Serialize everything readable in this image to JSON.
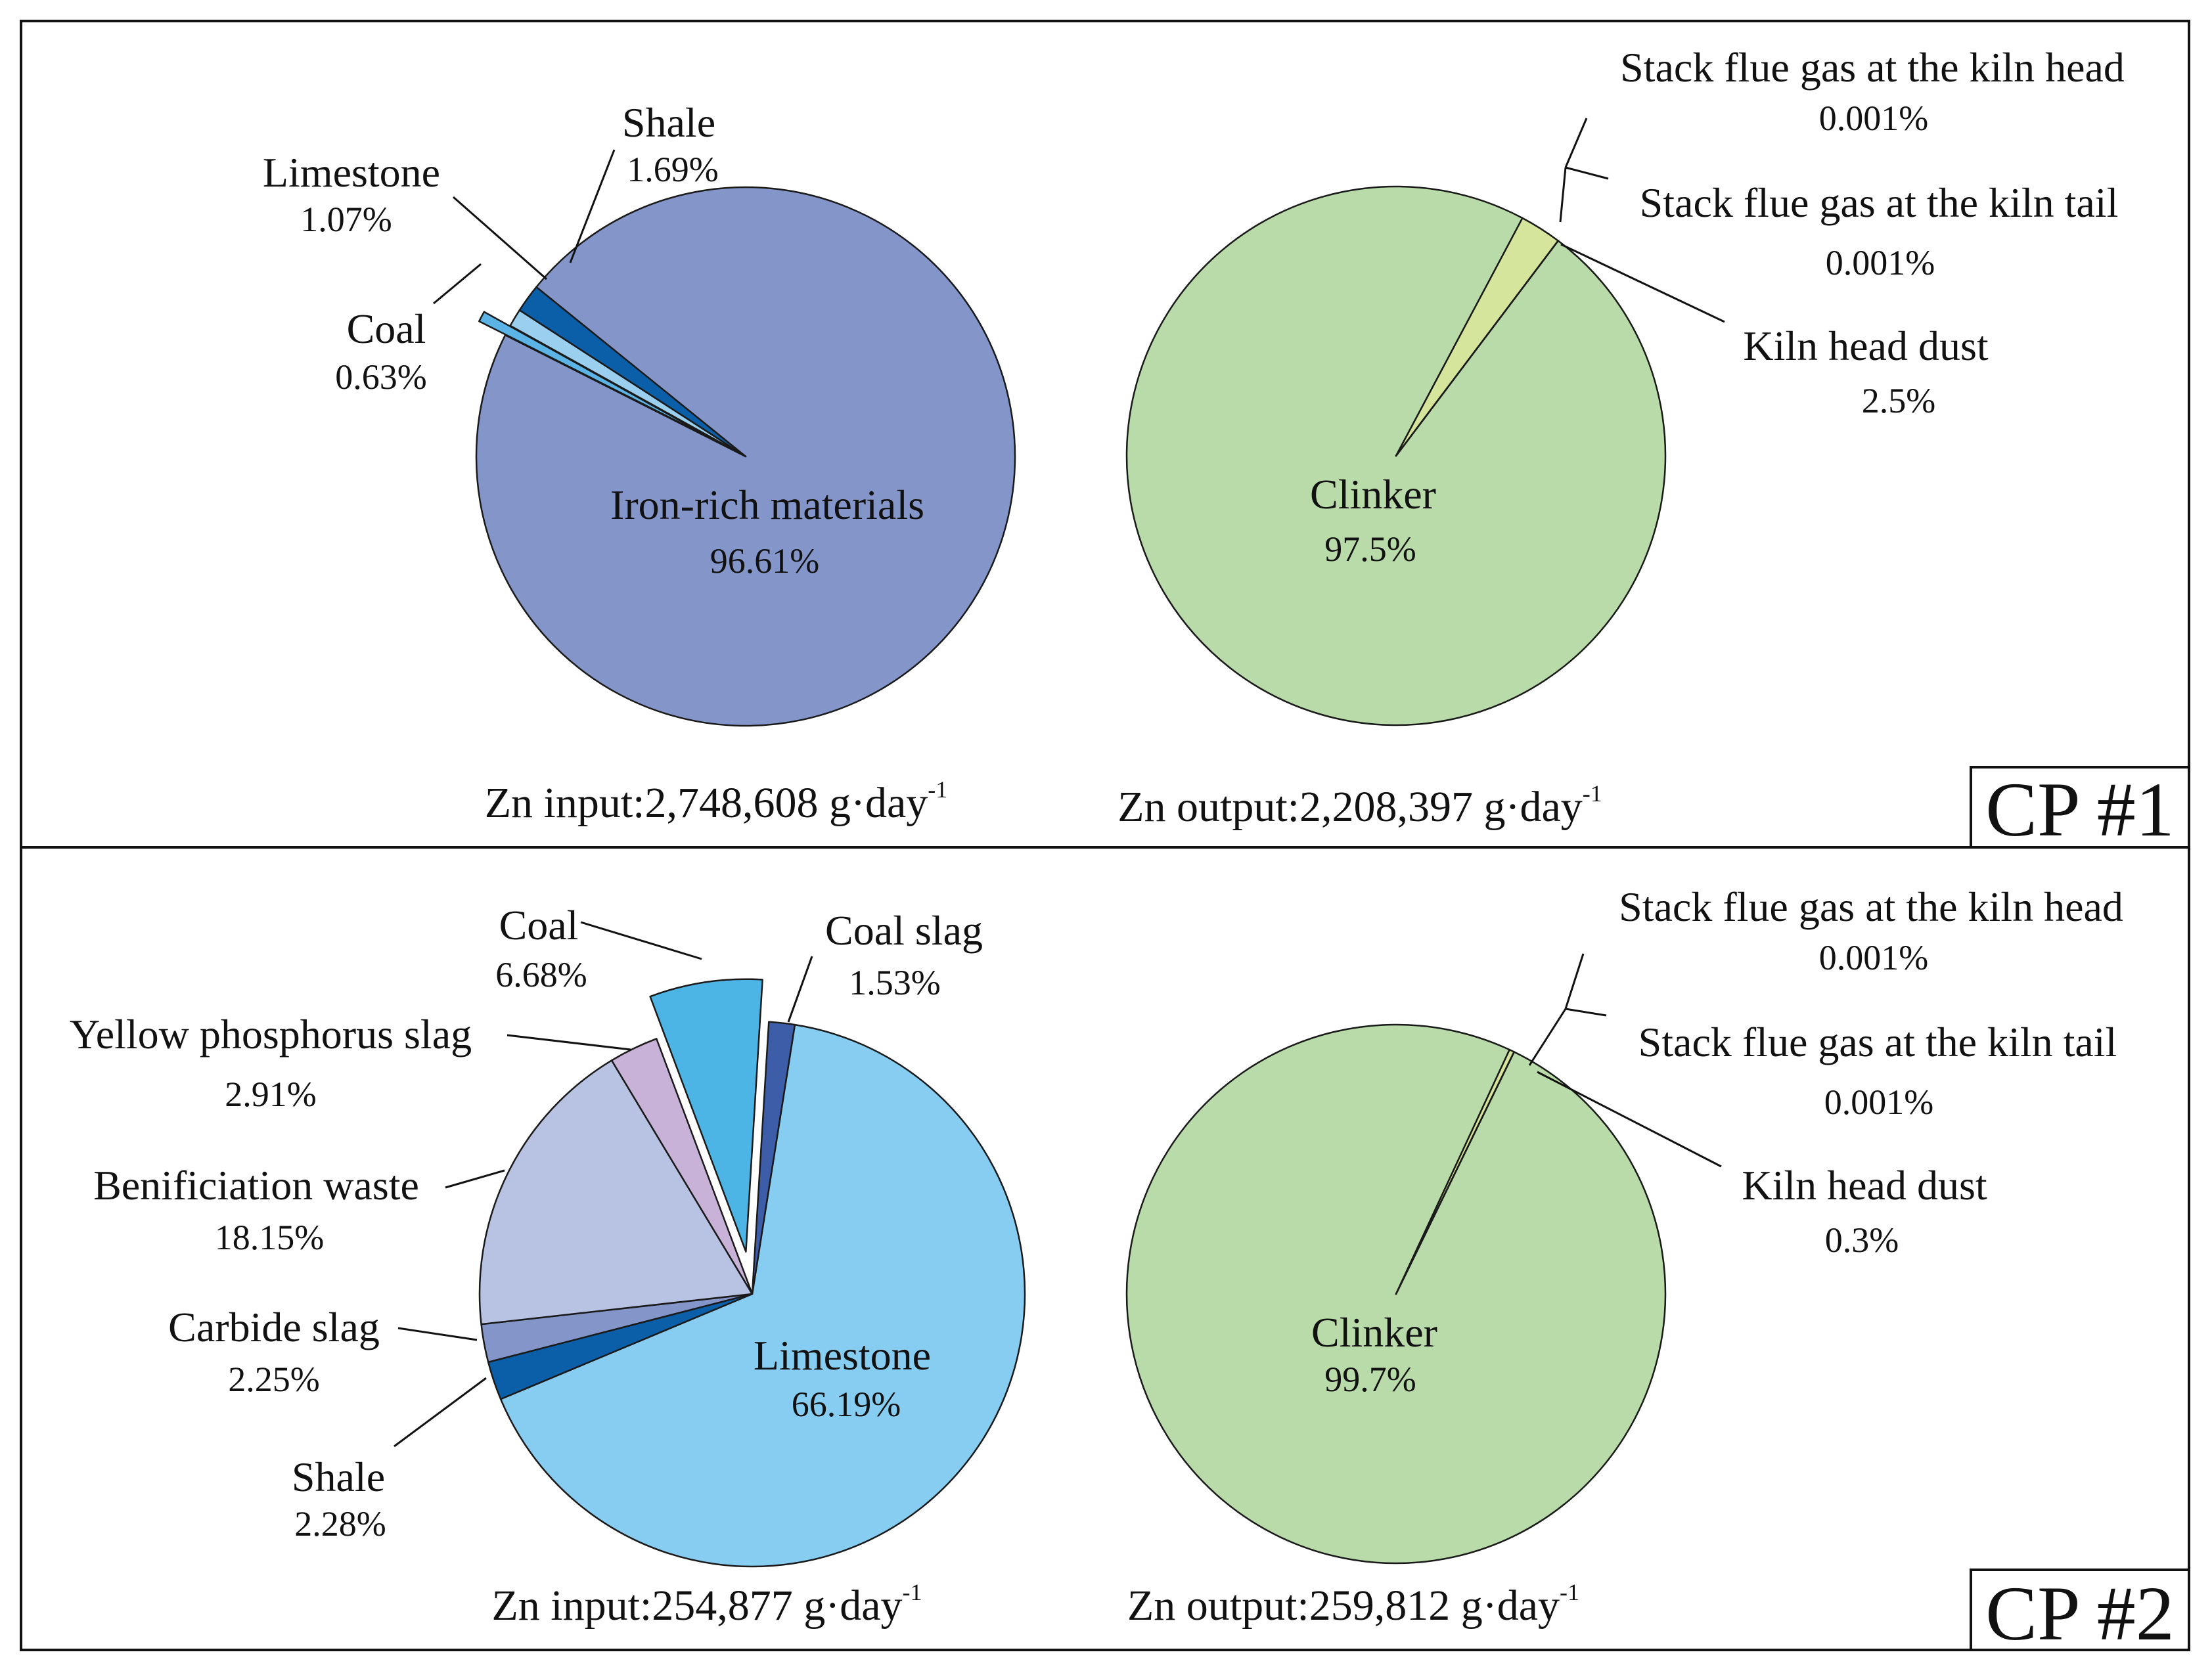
{
  "figure": {
    "panels": [
      {
        "tag": "CP #1",
        "input_total_label": "Zn input:2,748,608 g·day",
        "output_total_label": "Zn output:2,208,397 g·day",
        "unit_superscript": "-1"
      },
      {
        "tag": "CP #2",
        "input_total_label": "Zn input:254,877 g·day",
        "output_total_label": "Zn output:259,812 g·day",
        "unit_superscript": "-1"
      }
    ]
  },
  "chart_data": [
    {
      "type": "pie",
      "panel": "CP #1",
      "title": "Zn input:2,748,608 g·day⁻¹",
      "slices": [
        {
          "label": "Iron-rich materials",
          "value": 96.61,
          "value_label": "96.61%",
          "color": "#8496C9",
          "exploded": false
        },
        {
          "label": "Coal",
          "value": 0.63,
          "value_label": "0.63%",
          "color": "#5BB4E5",
          "exploded": true
        },
        {
          "label": "Limestone",
          "value": 1.07,
          "value_label": "1.07%",
          "color": "#9ACFEF",
          "exploded": false
        },
        {
          "label": "Shale",
          "value": 1.69,
          "value_label": "1.69%",
          "color": "#0B5FA8",
          "exploded": false
        }
      ]
    },
    {
      "type": "pie",
      "panel": "CP #1",
      "title": "Zn output:2,208,397 g·day⁻¹",
      "slices": [
        {
          "label": "Clinker",
          "value": 97.5,
          "value_label": "97.5%",
          "color": "#B9DBA9",
          "exploded": false
        },
        {
          "label": "Kiln head dust",
          "value": 2.5,
          "value_label": "2.5%",
          "color": "#D5E59B",
          "exploded": false
        },
        {
          "label": "Stack flue gas at the kiln tail",
          "value": 0.001,
          "value_label": "0.001%",
          "color": "#B9DBA9",
          "exploded": false
        },
        {
          "label": "Stack flue gas at the kiln head",
          "value": 0.001,
          "value_label": "0.001%",
          "color": "#B9DBA9",
          "exploded": false
        }
      ]
    },
    {
      "type": "pie",
      "panel": "CP #2",
      "title": "Zn input:254,877 g·day⁻¹",
      "slices": [
        {
          "label": "Limestone",
          "value": 66.19,
          "value_label": "66.19%",
          "color": "#87CDF2",
          "exploded": false
        },
        {
          "label": "Shale",
          "value": 2.28,
          "value_label": "2.28%",
          "color": "#0B5FA8",
          "exploded": false
        },
        {
          "label": "Carbide slag",
          "value": 2.25,
          "value_label": "2.25%",
          "color": "#8496C9",
          "exploded": false
        },
        {
          "label": "Benificiation waste",
          "value": 18.15,
          "value_label": "18.15%",
          "color": "#B8C3E3",
          "exploded": false
        },
        {
          "label": "Yellow phosphorus slag",
          "value": 2.91,
          "value_label": "2.91%",
          "color": "#C9B2D8",
          "exploded": false
        },
        {
          "label": "Coal",
          "value": 6.68,
          "value_label": "6.68%",
          "color": "#4DB4E6",
          "exploded": true
        },
        {
          "label": "Coal slag",
          "value": 1.53,
          "value_label": "1.53%",
          "color": "#3D5DA8",
          "exploded": false
        }
      ]
    },
    {
      "type": "pie",
      "panel": "CP #2",
      "title": "Zn output:259,812 g·day⁻¹",
      "slices": [
        {
          "label": "Clinker",
          "value": 99.7,
          "value_label": "99.7%",
          "color": "#B9DBA9",
          "exploded": false
        },
        {
          "label": "Kiln head dust",
          "value": 0.3,
          "value_label": "0.3%",
          "color": "#D5E59B",
          "exploded": false
        },
        {
          "label": "Stack flue gas at the kiln tail",
          "value": 0.001,
          "value_label": "0.001%",
          "color": "#B9DBA9",
          "exploded": false
        },
        {
          "label": "Stack flue gas at the kiln head",
          "value": 0.001,
          "value_label": "0.001%",
          "color": "#B9DBA9",
          "exploded": false
        }
      ]
    }
  ]
}
